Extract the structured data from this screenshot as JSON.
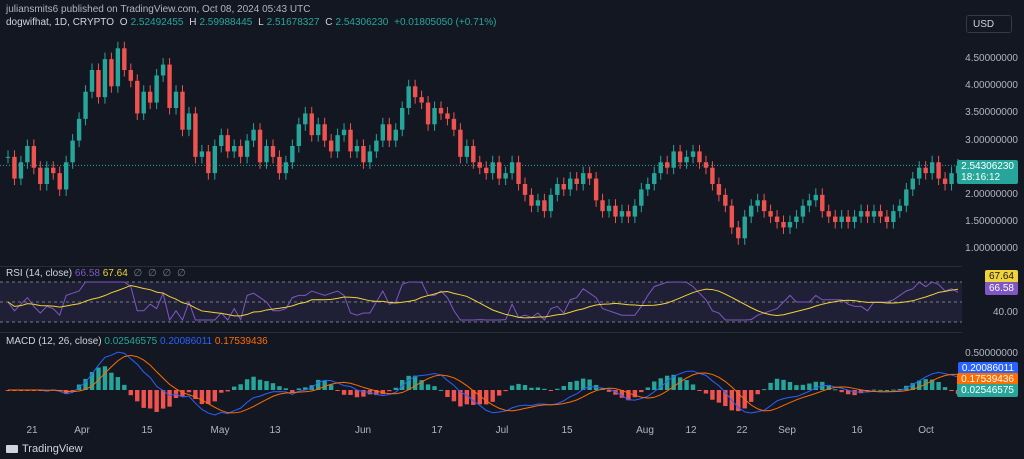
{
  "header": {
    "published": "juliansmits6 published on TradingView.com, Oct 08, 2024 05:43 UTC",
    "symbol": "dogwifhat, 1D, CRYPTO",
    "open_label": "O",
    "open": "2.52492455",
    "high_label": "H",
    "high": "2.59988445",
    "low_label": "L",
    "low": "2.51678327",
    "close_label": "C",
    "close": "2.54306230",
    "change": "+0.01805050 (+0.71%)"
  },
  "currency": "USD",
  "price_axis": [
    "4.50000000",
    "4.00000000",
    "3.50000000",
    "3.00000000",
    "2.50000000",
    "2.00000000",
    "1.50000000",
    "1.00000000"
  ],
  "last_price": {
    "value": "2.54306230",
    "countdown": "18:16:12"
  },
  "rsi": {
    "label": "RSI (14, close)",
    "value": "66.58",
    "ma_value": "67.64",
    "icons": [
      "∅",
      "∅",
      "∅",
      "∅"
    ],
    "axis": [
      "60.00",
      "40.00"
    ],
    "badge_rsi": "66.58",
    "badge_ma": "67.64"
  },
  "macd": {
    "label": "MACD (12, 26, close)",
    "histogram": "0.02546575",
    "macd_line": "0.20086011",
    "signal": "0.17539436",
    "axis": [
      "0.50000000"
    ],
    "badge_macd": "0.20086011",
    "badge_signal": "0.17539436",
    "badge_hist": "0.02546575"
  },
  "dates": [
    "21",
    "Apr",
    "15",
    "May",
    "13",
    "Jun",
    "17",
    "Jul",
    "15",
    "Aug",
    "12",
    "22",
    "Sep",
    "16",
    "Oct"
  ],
  "brand": "TradingView",
  "colors": {
    "up": "#26a69a",
    "down": "#ef5350",
    "rsi": "#7e57c2",
    "rsi_ma": "#f0d23a",
    "macd": "#2962ff",
    "signal": "#ff6d00",
    "bg": "#131722"
  },
  "chart_data": {
    "type": "candlestick",
    "title": "dogwifhat, 1D, CRYPTO",
    "ylim": [
      0.8,
      5.0
    ],
    "closes": [
      2.7,
      2.3,
      2.6,
      2.9,
      2.5,
      2.2,
      2.5,
      2.4,
      2.1,
      2.6,
      3.0,
      3.4,
      3.9,
      4.3,
      3.8,
      4.5,
      4.0,
      4.7,
      4.3,
      4.1,
      3.5,
      3.9,
      3.7,
      4.2,
      4.4,
      3.6,
      3.9,
      3.2,
      3.5,
      2.7,
      2.8,
      2.4,
      2.9,
      3.1,
      2.8,
      2.9,
      2.7,
      3.0,
      3.2,
      2.6,
      2.9,
      2.7,
      2.4,
      2.6,
      2.9,
      3.3,
      3.5,
      3.1,
      3.3,
      3.0,
      2.8,
      3.1,
      3.2,
      2.8,
      2.9,
      2.6,
      2.8,
      3.0,
      3.3,
      3.0,
      3.2,
      3.6,
      4.0,
      3.8,
      3.7,
      3.3,
      3.6,
      3.5,
      3.4,
      3.2,
      2.7,
      2.9,
      2.6,
      2.5,
      2.4,
      2.6,
      2.3,
      2.4,
      2.6,
      2.2,
      2.0,
      1.8,
      1.9,
      1.7,
      2.0,
      2.2,
      2.1,
      2.3,
      2.2,
      2.4,
      2.3,
      1.9,
      1.7,
      1.8,
      1.6,
      1.7,
      1.6,
      1.8,
      2.1,
      2.2,
      2.4,
      2.6,
      2.5,
      2.8,
      2.6,
      2.7,
      2.8,
      2.6,
      2.5,
      2.2,
      2.0,
      1.8,
      1.4,
      1.2,
      1.6,
      1.8,
      1.9,
      1.7,
      1.6,
      1.5,
      1.4,
      1.5,
      1.6,
      1.8,
      1.9,
      2.0,
      1.7,
      1.6,
      1.5,
      1.6,
      1.5,
      1.6,
      1.7,
      1.6,
      1.7,
      1.6,
      1.5,
      1.7,
      1.8,
      2.1,
      2.3,
      2.5,
      2.4,
      2.6,
      2.3,
      2.2,
      2.4,
      2.54
    ]
  }
}
